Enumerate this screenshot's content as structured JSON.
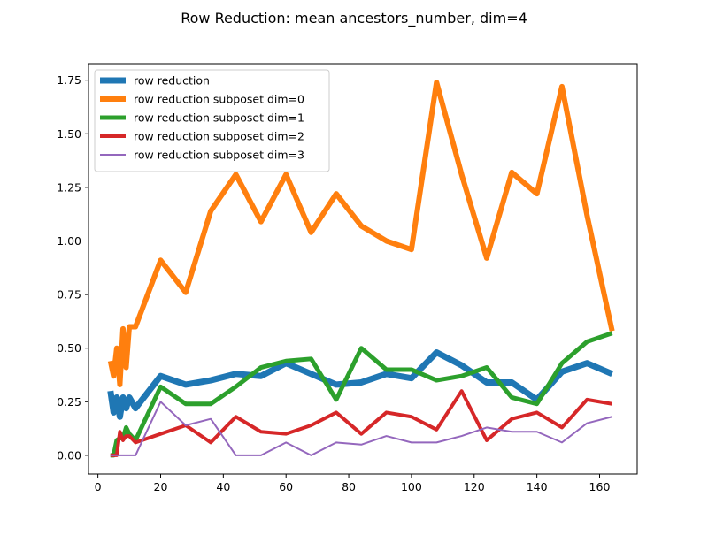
{
  "chart_data": {
    "type": "line",
    "title": "Row Reduction: mean ancestors_number, dim=4",
    "xlabel": "",
    "ylabel": "",
    "xlim": [
      -3,
      172
    ],
    "ylim": [
      -0.087,
      1.827
    ],
    "x_ticks": [
      0,
      20,
      40,
      60,
      80,
      100,
      120,
      140,
      160
    ],
    "y_ticks": [
      0.0,
      0.25,
      0.5,
      0.75,
      1.0,
      1.25,
      1.5,
      1.75
    ],
    "x_tick_labels": [
      "0",
      "20",
      "40",
      "60",
      "80",
      "100",
      "120",
      "140",
      "160"
    ],
    "y_tick_labels": [
      "0.00",
      "0.25",
      "0.50",
      "0.75",
      "1.00",
      "1.25",
      "1.50",
      "1.75"
    ],
    "grid": false,
    "legend_position": "upper-left",
    "series": [
      {
        "name": "row reduction",
        "color": "#1f77b4",
        "linewidth": 7,
        "x": [
          4,
          5,
          6,
          7,
          8,
          9,
          10,
          12,
          20,
          28,
          36,
          44,
          52,
          60,
          68,
          76,
          84,
          92,
          100,
          108,
          116,
          124,
          132,
          140,
          148,
          156,
          164
        ],
        "y": [
          0.3,
          0.2,
          0.27,
          0.18,
          0.27,
          0.22,
          0.27,
          0.22,
          0.37,
          0.33,
          0.35,
          0.38,
          0.37,
          0.43,
          0.38,
          0.33,
          0.34,
          0.38,
          0.36,
          0.48,
          0.42,
          0.34,
          0.34,
          0.26,
          0.39,
          0.43,
          0.38
        ]
      },
      {
        "name": "row reduction subposet dim=0",
        "color": "#ff7f0e",
        "linewidth": 6,
        "x": [
          4,
          5,
          6,
          7,
          8,
          9,
          10,
          12,
          20,
          28,
          36,
          44,
          52,
          60,
          68,
          76,
          84,
          92,
          100,
          108,
          116,
          124,
          132,
          140,
          148,
          156,
          164
        ],
        "y": [
          0.44,
          0.37,
          0.5,
          0.33,
          0.59,
          0.41,
          0.6,
          0.6,
          0.91,
          0.76,
          1.14,
          1.31,
          1.09,
          1.31,
          1.04,
          1.22,
          1.07,
          1.0,
          0.96,
          1.74,
          1.31,
          0.92,
          1.32,
          1.22,
          1.72,
          1.12,
          0.58
        ]
      },
      {
        "name": "row reduction subposet dim=1",
        "color": "#2ca02c",
        "linewidth": 5,
        "x": [
          4,
          5,
          6,
          7,
          8,
          9,
          10,
          12,
          20,
          28,
          36,
          44,
          52,
          60,
          68,
          76,
          84,
          92,
          100,
          108,
          116,
          124,
          132,
          140,
          148,
          156,
          164
        ],
        "y": [
          0.0,
          0.0,
          0.07,
          0.08,
          0.08,
          0.13,
          0.1,
          0.07,
          0.32,
          0.24,
          0.24,
          0.32,
          0.41,
          0.44,
          0.45,
          0.26,
          0.5,
          0.4,
          0.4,
          0.35,
          0.37,
          0.41,
          0.27,
          0.24,
          0.43,
          0.53,
          0.57
        ]
      },
      {
        "name": "row reduction subposet dim=2",
        "color": "#d62728",
        "linewidth": 4,
        "x": [
          4,
          5,
          6,
          7,
          8,
          9,
          10,
          12,
          20,
          28,
          36,
          44,
          52,
          60,
          68,
          76,
          84,
          92,
          100,
          108,
          116,
          124,
          132,
          140,
          148,
          156,
          164
        ],
        "y": [
          0.0,
          0.0,
          0.0,
          0.11,
          0.07,
          0.09,
          0.09,
          0.06,
          0.1,
          0.14,
          0.06,
          0.18,
          0.11,
          0.1,
          0.14,
          0.2,
          0.1,
          0.2,
          0.18,
          0.12,
          0.3,
          0.07,
          0.17,
          0.2,
          0.13,
          0.26,
          0.24
        ]
      },
      {
        "name": "row reduction subposet dim=3",
        "color": "#9467bd",
        "linewidth": 2,
        "x": [
          4,
          5,
          6,
          7,
          8,
          9,
          10,
          12,
          20,
          28,
          36,
          44,
          52,
          60,
          68,
          76,
          84,
          92,
          100,
          108,
          116,
          124,
          132,
          140,
          148,
          156,
          164
        ],
        "y": [
          0.0,
          0.0,
          0.0,
          0.0,
          0.0,
          0.0,
          0.0,
          0.0,
          0.25,
          0.14,
          0.17,
          0.0,
          0.0,
          0.06,
          0.0,
          0.06,
          0.05,
          0.09,
          0.06,
          0.06,
          0.09,
          0.13,
          0.11,
          0.11,
          0.06,
          0.15,
          0.18
        ]
      }
    ]
  }
}
